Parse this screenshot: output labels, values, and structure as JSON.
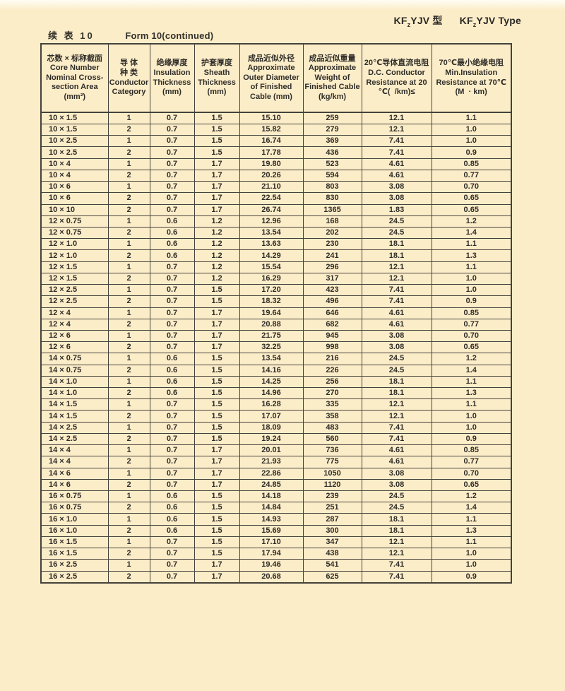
{
  "page": {
    "type_title": {
      "cn": {
        "prefix": "KF",
        "sub": "z",
        "suffix": "YJV 型"
      },
      "en": {
        "prefix": "KF",
        "sub": "z",
        "suffix": "YJV Type"
      }
    },
    "caption": {
      "cn": "续 表  10",
      "en": "Form 10(continued)"
    }
  },
  "colors": {
    "page_bg": "#fcedc9",
    "line": "#45423c",
    "text": "#2f2d28"
  },
  "table": {
    "columns": [
      {
        "id": "core-size",
        "lines": [
          "芯数 × 标称截面",
          "Core Number",
          "Nominal Cross-",
          "section Area",
          "(mm²)"
        ]
      },
      {
        "id": "conductor-category",
        "lines": [
          "导 体",
          "种 类",
          "Conductor",
          "Category"
        ]
      },
      {
        "id": "insulation-thickness",
        "lines": [
          "绝缘厚度",
          "Insulation",
          "Thickness",
          "(mm)"
        ]
      },
      {
        "id": "sheath-thickness",
        "lines": [
          "护套厚度",
          "Sheath",
          "Thickness",
          "(mm)"
        ]
      },
      {
        "id": "outer-diameter",
        "lines": [
          "成品近似外径",
          "Approximate",
          "Outer Diameter",
          "of Finished",
          "Cable (mm)"
        ]
      },
      {
        "id": "weight",
        "lines": [
          "成品近似重量",
          "Approximate",
          "Weight of",
          "Finished Cable",
          "(kg/km)"
        ]
      },
      {
        "id": "dc-resistance",
        "lines": [
          "20℃导体直流电阻",
          "D.C. Conductor",
          "Resistance at 20",
          "℃(  /km)≤"
        ]
      },
      {
        "id": "min-insulation-resistance",
        "lines": [
          "70℃最小绝缘电阻",
          "Min.Insulation",
          "Resistance at 70℃",
          "(M  · km)"
        ]
      }
    ],
    "rows": [
      [
        "10 × 1.5",
        "1",
        "0.7",
        "1.5",
        "15.10",
        "259",
        "12.1",
        "1.1"
      ],
      [
        "10 × 1.5",
        "2",
        "0.7",
        "1.5",
        "15.82",
        "279",
        "12.1",
        "1.0"
      ],
      [
        "10 × 2.5",
        "1",
        "0.7",
        "1.5",
        "16.74",
        "369",
        "7.41",
        "1.0"
      ],
      [
        "10 × 2.5",
        "2",
        "0.7",
        "1.5",
        "17.78",
        "436",
        "7.41",
        "0.9"
      ],
      [
        "10 × 4",
        "1",
        "0.7",
        "1.7",
        "19.80",
        "523",
        "4.61",
        "0.85"
      ],
      [
        "10 × 4",
        "2",
        "0.7",
        "1.7",
        "20.26",
        "594",
        "4.61",
        "0.77"
      ],
      [
        "10 × 6",
        "1",
        "0.7",
        "1.7",
        "21.10",
        "803",
        "3.08",
        "0.70"
      ],
      [
        "10 × 6",
        "2",
        "0.7",
        "1.7",
        "22.54",
        "830",
        "3.08",
        "0.65"
      ],
      [
        "10 × 10",
        "2",
        "0.7",
        "1.7",
        "26.74",
        "1365",
        "1.83",
        "0.65"
      ],
      [
        "12 × 0.75",
        "1",
        "0.6",
        "1.2",
        "12.96",
        "168",
        "24.5",
        "1.2"
      ],
      [
        "12 × 0.75",
        "2",
        "0.6",
        "1.2",
        "13.54",
        "202",
        "24.5",
        "1.4"
      ],
      [
        "12 × 1.0",
        "1",
        "0.6",
        "1.2",
        "13.63",
        "230",
        "18.1",
        "1.1"
      ],
      [
        "12 × 1.0",
        "2",
        "0.6",
        "1.2",
        "14.29",
        "241",
        "18.1",
        "1.3"
      ],
      [
        "12 × 1.5",
        "1",
        "0.7",
        "1.2",
        "15.54",
        "296",
        "12.1",
        "1.1"
      ],
      [
        "12 × 1.5",
        "2",
        "0.7",
        "1.2",
        "16.29",
        "317",
        "12.1",
        "1.0"
      ],
      [
        "12 × 2.5",
        "1",
        "0.7",
        "1.5",
        "17.20",
        "423",
        "7.41",
        "1.0"
      ],
      [
        "12 × 2.5",
        "2",
        "0.7",
        "1.5",
        "18.32",
        "496",
        "7.41",
        "0.9"
      ],
      [
        "12 × 4",
        "1",
        "0.7",
        "1.7",
        "19.64",
        "646",
        "4.61",
        "0.85"
      ],
      [
        "12 × 4",
        "2",
        "0.7",
        "1.7",
        "20.88",
        "682",
        "4.61",
        "0.77"
      ],
      [
        "12 × 6",
        "1",
        "0.7",
        "1.7",
        "21.75",
        "945",
        "3.08",
        "0.70"
      ],
      [
        "12 × 6",
        "2",
        "0.7",
        "1.7",
        "32.25",
        "998",
        "3.08",
        "0.65"
      ],
      [
        "14 × 0.75",
        "1",
        "0.6",
        "1.5",
        "13.54",
        "216",
        "24.5",
        "1.2"
      ],
      [
        "14 × 0.75",
        "2",
        "0.6",
        "1.5",
        "14.16",
        "226",
        "24.5",
        "1.4"
      ],
      [
        "14 × 1.0",
        "1",
        "0.6",
        "1.5",
        "14.25",
        "256",
        "18.1",
        "1.1"
      ],
      [
        "14 × 1.0",
        "2",
        "0.6",
        "1.5",
        "14.96",
        "270",
        "18.1",
        "1.3"
      ],
      [
        "14 × 1.5",
        "1",
        "0.7",
        "1.5",
        "16.28",
        "335",
        "12.1",
        "1.1"
      ],
      [
        "14 × 1.5",
        "2",
        "0.7",
        "1.5",
        "17.07",
        "358",
        "12.1",
        "1.0"
      ],
      [
        "14 × 2.5",
        "1",
        "0.7",
        "1.5",
        "18.09",
        "483",
        "7.41",
        "1.0"
      ],
      [
        "14 × 2.5",
        "2",
        "0.7",
        "1.5",
        "19.24",
        "560",
        "7.41",
        "0.9"
      ],
      [
        "14 × 4",
        "1",
        "0.7",
        "1.7",
        "20.01",
        "736",
        "4.61",
        "0.85"
      ],
      [
        "14 × 4",
        "2",
        "0.7",
        "1.7",
        "21.93",
        "775",
        "4.61",
        "0.77"
      ],
      [
        "14 × 6",
        "1",
        "0.7",
        "1.7",
        "22.86",
        "1050",
        "3.08",
        "0.70"
      ],
      [
        "14 × 6",
        "2",
        "0.7",
        "1.7",
        "24.85",
        "1120",
        "3.08",
        "0.65"
      ],
      [
        "16 × 0.75",
        "1",
        "0.6",
        "1.5",
        "14.18",
        "239",
        "24.5",
        "1.2"
      ],
      [
        "16 × 0.75",
        "2",
        "0.6",
        "1.5",
        "14.84",
        "251",
        "24.5",
        "1.4"
      ],
      [
        "16 × 1.0",
        "1",
        "0.6",
        "1.5",
        "14.93",
        "287",
        "18.1",
        "1.1"
      ],
      [
        "16 × 1.0",
        "2",
        "0.6",
        "1.5",
        "15.69",
        "300",
        "18.1",
        "1.3"
      ],
      [
        "16 × 1.5",
        "1",
        "0.7",
        "1.5",
        "17.10",
        "347",
        "12.1",
        "1.1"
      ],
      [
        "16 × 1.5",
        "2",
        "0.7",
        "1.5",
        "17.94",
        "438",
        "12.1",
        "1.0"
      ],
      [
        "16 × 2.5",
        "1",
        "0.7",
        "1.7",
        "19.46",
        "541",
        "7.41",
        "1.0"
      ],
      [
        "16 × 2.5",
        "2",
        "0.7",
        "1.7",
        "20.68",
        "625",
        "7.41",
        "0.9"
      ]
    ]
  }
}
